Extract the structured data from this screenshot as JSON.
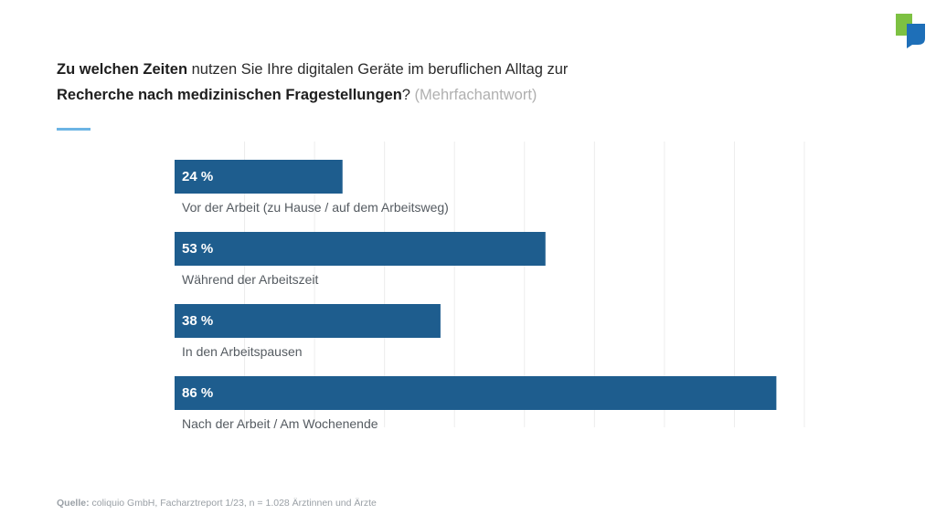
{
  "title": {
    "line1_bold": "Zu welchen Zeiten",
    "line1_rest": " nutzen Sie Ihre digitalen Geräte im beruflichen Alltag zur",
    "line2_bold": "Recherche nach medizinischen Fragestellungen",
    "line2_q": "?",
    "line2_hint": " (Mehrfachantwort)"
  },
  "chart_data": {
    "type": "bar",
    "orientation": "horizontal",
    "categories": [
      "Vor der Arbeit (zu Hause / auf dem Arbeitsweg)",
      "Während der Arbeitszeit",
      "In den Arbeitspausen",
      "Nach der Arbeit / Am Wochenende"
    ],
    "values": [
      24,
      53,
      38,
      86
    ],
    "value_labels": [
      "24 %",
      "53 %",
      "38 %",
      "86 %"
    ],
    "xlim": [
      0,
      90
    ],
    "grid": true,
    "bar_color": "#1e5d8e"
  },
  "footer": {
    "source_label": "Quelle:",
    "source_text": " coliquio GmbH, Facharztreport 1/23, n = 1.028 Ärztinnen und Ärzte"
  },
  "colors": {
    "accent_line": "#6cb4e4",
    "logo_green": "#7dc142",
    "logo_blue": "#1e6fb8"
  },
  "icons": {
    "logo": "coliquio-logo-icon"
  }
}
